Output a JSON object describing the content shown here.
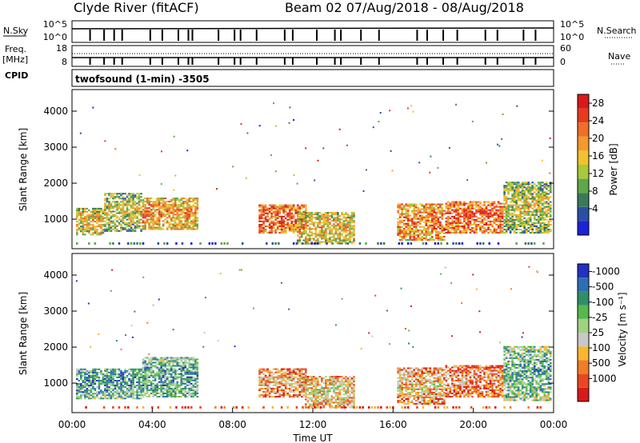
{
  "header": {
    "station": "Clyde River (fitACF)",
    "beam_date": "Beam 02  07/Aug/2018 - 08/Aug/2018"
  },
  "strip1": {
    "left_label": "N.Sky",
    "ytick_left_top": "10^5",
    "ytick_left_bottom": "10^0",
    "right_label": "N.Search",
    "ytick_right_top": "10^5",
    "ytick_right_bottom": "10^0"
  },
  "strip2": {
    "left_label_1": "Freq.",
    "left_label_2": "[MHz]",
    "ytick_left_top": "18",
    "ytick_left_bottom": "8",
    "right_label": "Nave",
    "ytick_right_top": "60",
    "ytick_right_bottom": "0"
  },
  "cpid_label": "CPID",
  "mode_text": "twofsound (1-min) -3505",
  "chart_data": [
    {
      "type": "heatmap",
      "title": "",
      "ylabel": "Slant Range [km]",
      "ylim": [
        180,
        4600
      ],
      "yticks": [
        "1000",
        "2000",
        "3000",
        "4000"
      ],
      "colorbar_label": "Power [dB]",
      "colorbar_ticks": [
        "4",
        "8",
        "12",
        "16",
        "20",
        "24",
        "28"
      ],
      "colorscale": [
        "#1e22d8",
        "#2a4fa6",
        "#3a7a5a",
        "#5fa84a",
        "#a9c83a",
        "#f1c22e",
        "#f39a2b",
        "#ee6f26",
        "#e53b1f",
        "#d81a1a"
      ],
      "bands": [
        {
          "x0": 0.2,
          "x1": 1.6,
          "r0": 550,
          "r1": 1300,
          "level": 0.45
        },
        {
          "x0": 1.6,
          "x1": 3.5,
          "r0": 650,
          "r1": 1700,
          "level": 0.35
        },
        {
          "x0": 3.5,
          "x1": 6.2,
          "r0": 700,
          "r1": 1600,
          "level": 0.55
        },
        {
          "x0": 9.3,
          "x1": 11.6,
          "r0": 600,
          "r1": 1400,
          "level": 0.7
        },
        {
          "x0": 11.2,
          "x1": 14.0,
          "r0": 300,
          "r1": 1200,
          "level": 0.45
        },
        {
          "x0": 16.2,
          "x1": 18.6,
          "r0": 400,
          "r1": 1400,
          "level": 0.6
        },
        {
          "x0": 18.6,
          "x1": 21.5,
          "r0": 600,
          "r1": 1500,
          "level": 0.7
        },
        {
          "x0": 21.5,
          "x1": 23.9,
          "r0": 600,
          "r1": 2000,
          "level": 0.35
        }
      ]
    },
    {
      "type": "heatmap",
      "title": "",
      "xlabel": "Time UT",
      "ylabel": "Slant Range [km]",
      "ylim": [
        180,
        4600
      ],
      "yticks": [
        "1000",
        "2000",
        "3000",
        "4000"
      ],
      "colorbar_label": "Velocity [m s⁻¹]",
      "colorbar_ticks": [
        "1000",
        "500",
        "100",
        "25",
        "-25",
        "-100",
        "-500",
        "-1000"
      ],
      "colorscale": [
        "#d81a1a",
        "#e8481f",
        "#f07d26",
        "#f7b733",
        "#c8c8c8",
        "#9fd37e",
        "#56b84d",
        "#2f8f6a",
        "#2d6fb3",
        "#2430c0"
      ],
      "bands": [
        {
          "x0": 0.2,
          "x1": 3.5,
          "r0": 550,
          "r1": 1400,
          "level": 0.62
        },
        {
          "x0": 3.5,
          "x1": 6.2,
          "r0": 600,
          "r1": 1700,
          "level": 0.6
        },
        {
          "x0": 9.3,
          "x1": 11.6,
          "r0": 600,
          "r1": 1400,
          "level": 0.2
        },
        {
          "x0": 11.6,
          "x1": 14.0,
          "r0": 300,
          "r1": 1200,
          "level": 0.3
        },
        {
          "x0": 16.2,
          "x1": 18.6,
          "r0": 400,
          "r1": 1400,
          "level": 0.25
        },
        {
          "x0": 18.6,
          "x1": 21.5,
          "r0": 600,
          "r1": 1500,
          "level": 0.15
        },
        {
          "x0": 21.5,
          "x1": 23.9,
          "r0": 500,
          "r1": 2000,
          "level": 0.55
        }
      ],
      "xticks": [
        "00:00",
        "04:00",
        "08:00",
        "12:00",
        "16:00",
        "20:00",
        "00:00"
      ],
      "xlim": [
        0,
        24
      ]
    }
  ]
}
